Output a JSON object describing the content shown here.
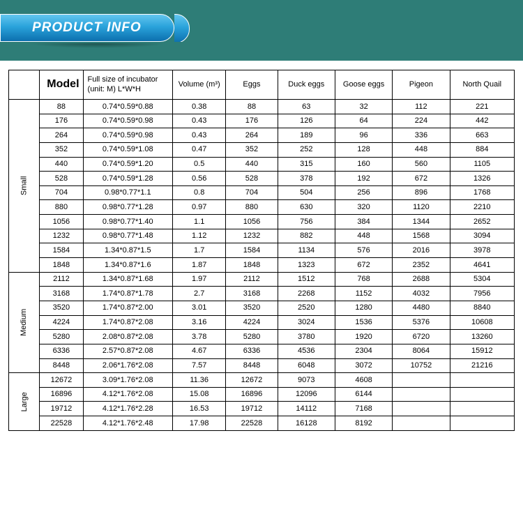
{
  "banner": {
    "title": "PRODUCT INFO"
  },
  "headers": {
    "model": "Model",
    "size_line1": "Full size of incubator",
    "size_line2": "(unit: M)  L*W*H",
    "volume": "Volume (m³)",
    "eggs": "Eggs",
    "duck": "Duck eggs",
    "goose": "Goose eggs",
    "pigeon": "Pigeon",
    "quail": "North Quail"
  },
  "groups": [
    {
      "label": "Small",
      "rows": [
        {
          "model": "88",
          "size": "0.74*0.59*0.88",
          "vol": "0.38",
          "eggs": "88",
          "duck": "63",
          "goose": "32",
          "pigeon": "112",
          "quail": "221"
        },
        {
          "model": "176",
          "size": "0.74*0.59*0.98",
          "vol": "0.43",
          "eggs": "176",
          "duck": "126",
          "goose": "64",
          "pigeon": "224",
          "quail": "442"
        },
        {
          "model": "264",
          "size": "0.74*0.59*0.98",
          "vol": "0.43",
          "eggs": "264",
          "duck": "189",
          "goose": "96",
          "pigeon": "336",
          "quail": "663"
        },
        {
          "model": "352",
          "size": "0.74*0.59*1.08",
          "vol": "0.47",
          "eggs": "352",
          "duck": "252",
          "goose": "128",
          "pigeon": "448",
          "quail": "884"
        },
        {
          "model": "440",
          "size": "0.74*0.59*1.20",
          "vol": "0.5",
          "eggs": "440",
          "duck": "315",
          "goose": "160",
          "pigeon": "560",
          "quail": "1105"
        },
        {
          "model": "528",
          "size": "0.74*0.59*1.28",
          "vol": "0.56",
          "eggs": "528",
          "duck": "378",
          "goose": "192",
          "pigeon": "672",
          "quail": "1326"
        },
        {
          "model": "704",
          "size": "0.98*0.77*1.1",
          "vol": "0.8",
          "eggs": "704",
          "duck": "504",
          "goose": "256",
          "pigeon": "896",
          "quail": "1768"
        },
        {
          "model": "880",
          "size": "0.98*0.77*1.28",
          "vol": "0.97",
          "eggs": "880",
          "duck": "630",
          "goose": "320",
          "pigeon": "1120",
          "quail": "2210"
        },
        {
          "model": "1056",
          "size": "0.98*0.77*1.40",
          "vol": "1.1",
          "eggs": "1056",
          "duck": "756",
          "goose": "384",
          "pigeon": "1344",
          "quail": "2652"
        },
        {
          "model": "1232",
          "size": "0.98*0.77*1.48",
          "vol": "1.12",
          "eggs": "1232",
          "duck": "882",
          "goose": "448",
          "pigeon": "1568",
          "quail": "3094"
        },
        {
          "model": "1584",
          "size": "1.34*0.87*1.5",
          "vol": "1.7",
          "eggs": "1584",
          "duck": "1134",
          "goose": "576",
          "pigeon": "2016",
          "quail": "3978"
        },
        {
          "model": "1848",
          "size": "1.34*0.87*1.6",
          "vol": "1.87",
          "eggs": "1848",
          "duck": "1323",
          "goose": "672",
          "pigeon": "2352",
          "quail": "4641"
        }
      ]
    },
    {
      "label": "Medium",
      "rows": [
        {
          "model": "2112",
          "size": "1.34*0.87*1.68",
          "vol": "1.97",
          "eggs": "2112",
          "duck": "1512",
          "goose": "768",
          "pigeon": "2688",
          "quail": "5304"
        },
        {
          "model": "3168",
          "size": "1.74*0.87*1.78",
          "vol": "2.7",
          "eggs": "3168",
          "duck": "2268",
          "goose": "1152",
          "pigeon": "4032",
          "quail": "7956"
        },
        {
          "model": "3520",
          "size": "1.74*0.87*2.00",
          "vol": "3.01",
          "eggs": "3520",
          "duck": "2520",
          "goose": "1280",
          "pigeon": "4480",
          "quail": "8840"
        },
        {
          "model": "4224",
          "size": "1.74*0.87*2.08",
          "vol": "3.16",
          "eggs": "4224",
          "duck": "3024",
          "goose": "1536",
          "pigeon": "5376",
          "quail": "10608"
        },
        {
          "model": "5280",
          "size": "2.08*0.87*2.08",
          "vol": "3.78",
          "eggs": "5280",
          "duck": "3780",
          "goose": "1920",
          "pigeon": "6720",
          "quail": "13260"
        },
        {
          "model": "6336",
          "size": "2.57*0.87*2.08",
          "vol": "4.67",
          "eggs": "6336",
          "duck": "4536",
          "goose": "2304",
          "pigeon": "8064",
          "quail": "15912"
        },
        {
          "model": "8448",
          "size": "2.06*1.76*2.08",
          "vol": "7.57",
          "eggs": "8448",
          "duck": "6048",
          "goose": "3072",
          "pigeon": "10752",
          "quail": "21216"
        }
      ]
    },
    {
      "label": "Large",
      "rows": [
        {
          "model": "12672",
          "size": "3.09*1.76*2.08",
          "vol": "11.36",
          "eggs": "12672",
          "duck": "9073",
          "goose": "4608",
          "pigeon": "",
          "quail": ""
        },
        {
          "model": "16896",
          "size": "4.12*1.76*2.08",
          "vol": "15.08",
          "eggs": "16896",
          "duck": "12096",
          "goose": "6144",
          "pigeon": "",
          "quail": ""
        },
        {
          "model": "19712",
          "size": "4.12*1.76*2.28",
          "vol": "16.53",
          "eggs": "19712",
          "duck": "14112",
          "goose": "7168",
          "pigeon": "",
          "quail": ""
        },
        {
          "model": "22528",
          "size": "4.12*1.76*2.48",
          "vol": "17.98",
          "eggs": "22528",
          "duck": "16128",
          "goose": "8192",
          "pigeon": "",
          "quail": ""
        }
      ]
    }
  ]
}
